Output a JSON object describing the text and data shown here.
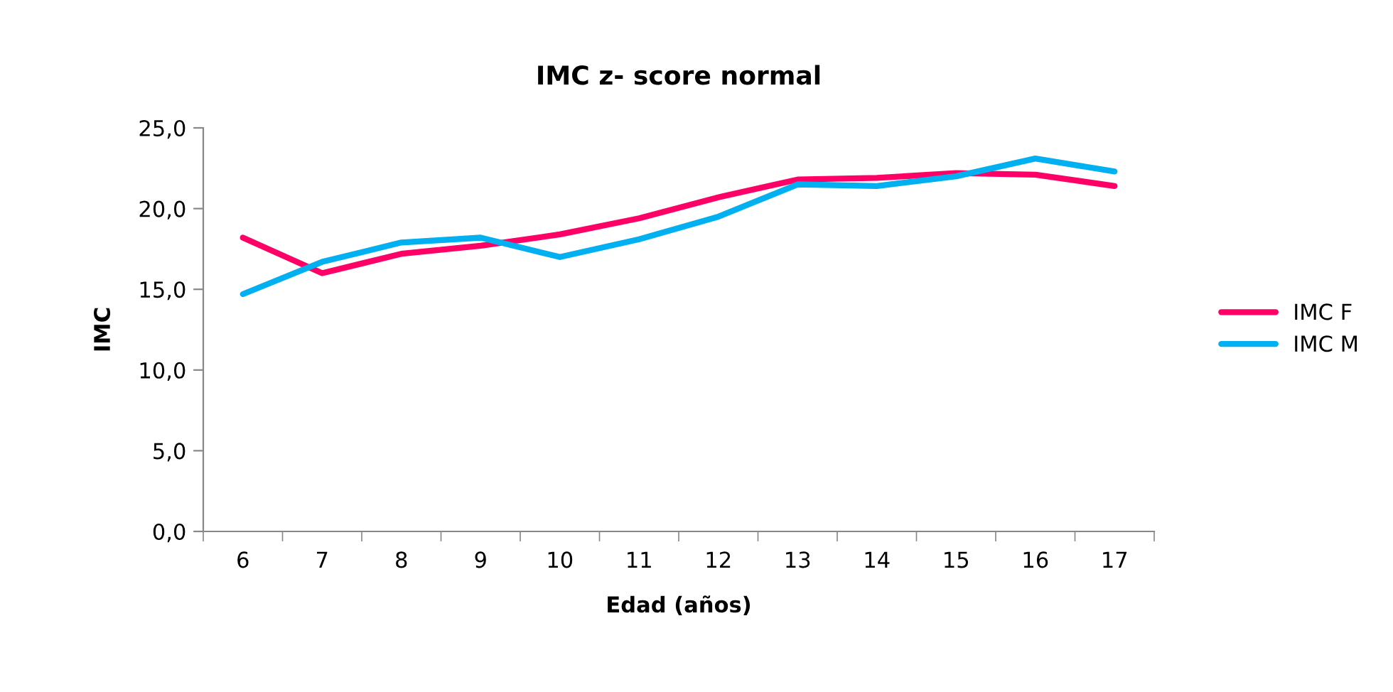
{
  "chart_data": {
    "type": "line",
    "title": "IMC z- score normal",
    "xlabel": "Edad (años)",
    "ylabel": "IMC",
    "categories": [
      "6",
      "7",
      "8",
      "9",
      "10",
      "11",
      "12",
      "13",
      "14",
      "15",
      "16",
      "17"
    ],
    "series": [
      {
        "name": "IMC F",
        "color": "#ff0066",
        "values": [
          18.2,
          16.0,
          17.2,
          17.7,
          18.4,
          19.4,
          20.7,
          21.8,
          21.9,
          22.2,
          22.1,
          21.4
        ]
      },
      {
        "name": "IMC M",
        "color": "#00b0f0",
        "values": [
          14.7,
          16.7,
          17.9,
          18.2,
          17.0,
          18.1,
          19.5,
          21.5,
          21.4,
          22.0,
          23.1,
          22.3
        ]
      }
    ],
    "ylim": [
      0,
      25
    ],
    "yticks": [
      {
        "value": 0,
        "label": "0,0"
      },
      {
        "value": 5,
        "label": "5,0"
      },
      {
        "value": 10,
        "label": "10,0"
      },
      {
        "value": 15,
        "label": "15,0"
      },
      {
        "value": 20,
        "label": "20,0"
      },
      {
        "value": 25,
        "label": "25,0"
      }
    ],
    "grid": false,
    "legend": "right",
    "marker": "none",
    "line_style": "solid"
  }
}
